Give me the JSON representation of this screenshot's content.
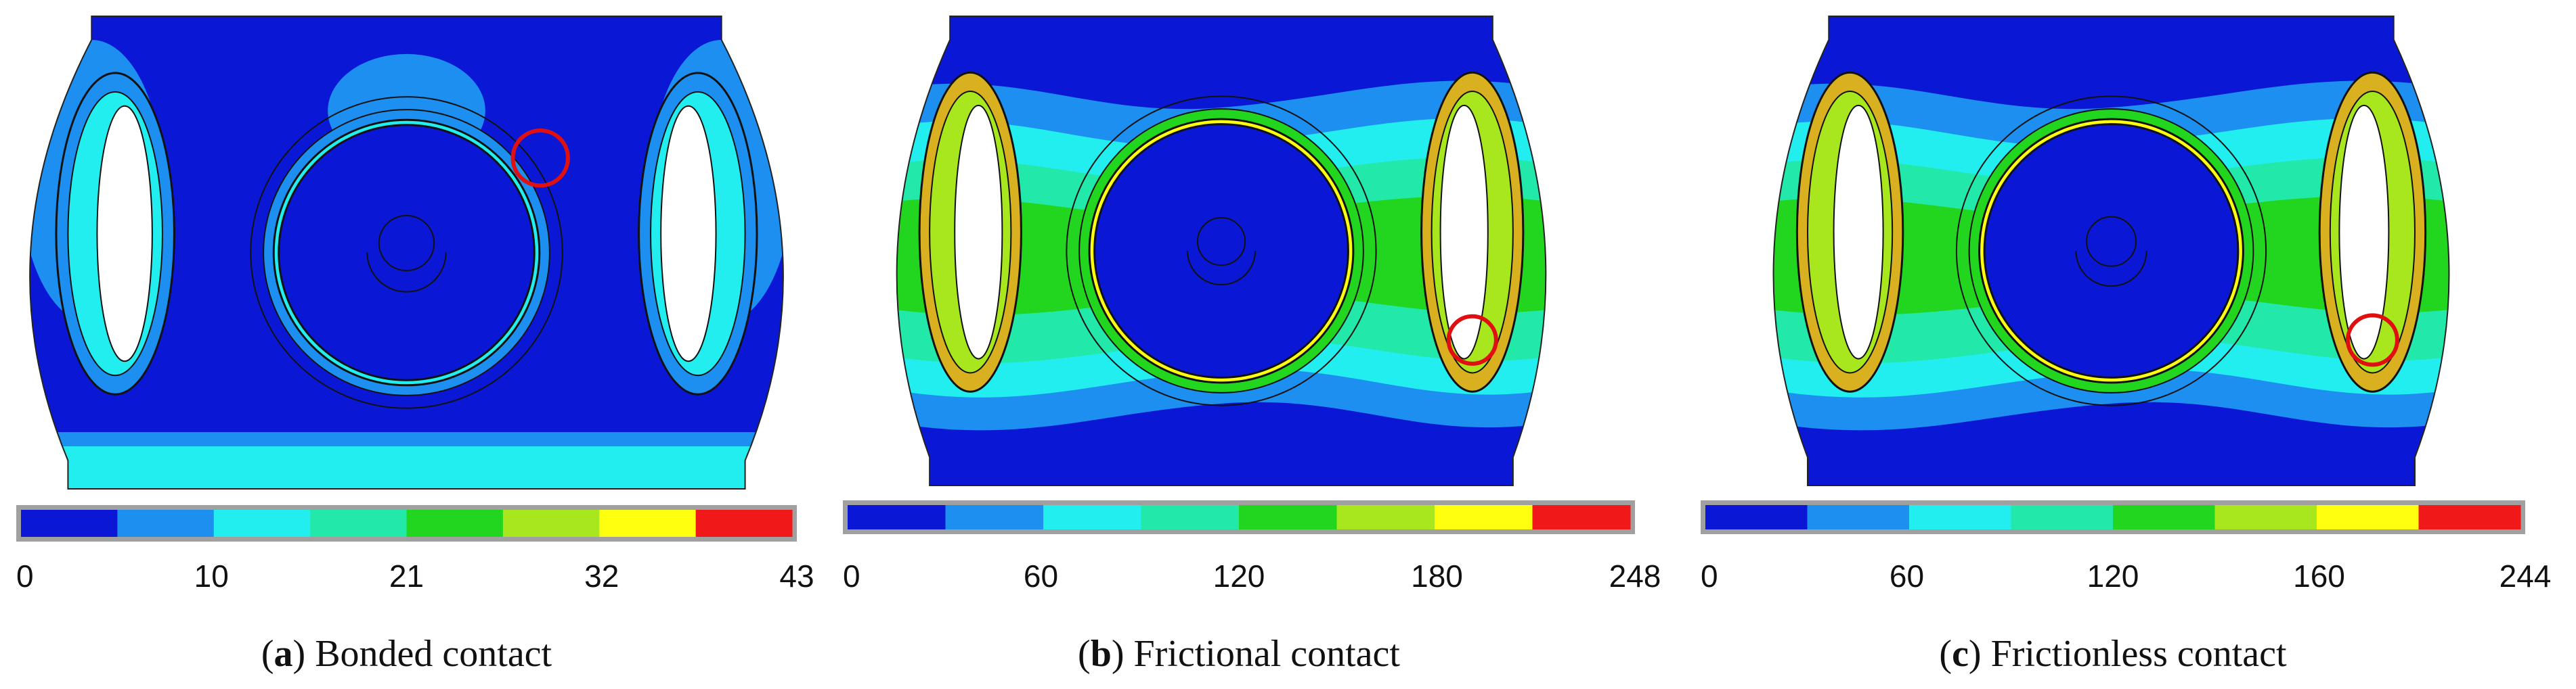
{
  "panels": [
    {
      "ticks": [
        0,
        10,
        21,
        32,
        43
      ],
      "caption": {
        "prefix": "(",
        "label": "a",
        "text": ") Bonded contact"
      }
    },
    {
      "ticks": [
        0,
        60,
        120,
        180,
        248
      ],
      "caption": {
        "prefix": "(",
        "label": "b",
        "text": ") Frictional contact"
      }
    },
    {
      "ticks": [
        0,
        60,
        120,
        160,
        244
      ],
      "caption": {
        "prefix": "(",
        "label": "c",
        "text": ") Frictionless contact"
      }
    }
  ]
}
